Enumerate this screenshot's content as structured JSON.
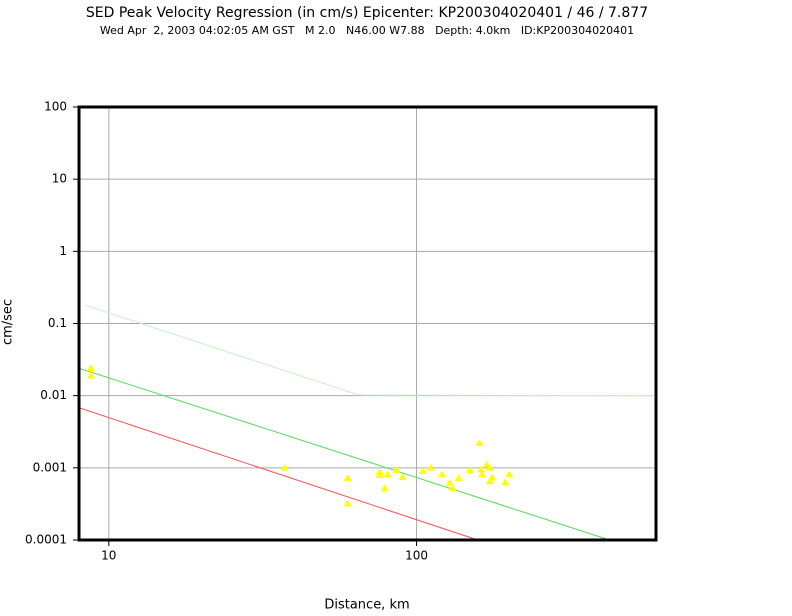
{
  "chart_data": {
    "type": "scatter",
    "title": "SED Peak Velocity Regression (in cm/s) Epicenter: KP200304020401 / 46 / 7.877",
    "subtitle": "Wed Apr  2, 2003 04:02:05 AM GST   M 2.0   N46.00 W7.88   Depth: 4.0km   ID:KP200304020401",
    "x_label": "Distance, km",
    "y_label": "cm/sec",
    "x_log": true,
    "y_log": true,
    "grid": true,
    "xlim": [
      8,
      600
    ],
    "ylim": [
      0.0001,
      100
    ],
    "xticks": [
      10,
      100
    ],
    "yticks": [
      100,
      10,
      1,
      0.1,
      0.01,
      0.001,
      0.0001
    ],
    "series": [
      {
        "type": "line",
        "color": "#ff5050",
        "x": [
          8,
          158
        ],
        "y": [
          0.0068,
          0.0001
        ]
      },
      {
        "type": "line",
        "color": "#5ad85a",
        "x": [
          8,
          424
        ],
        "y": [
          0.024,
          0.0001
        ]
      },
      {
        "type": "line",
        "color": "#c8efc8",
        "x": [
          8.36,
          65,
          600
        ],
        "y": [
          0.18,
          0.0102,
          0.01
        ]
      },
      {
        "type": "scatter",
        "color": "#ffff00",
        "x": [
          8.74,
          8.74,
          37.3,
          59.7,
          59.7,
          75.9,
          75.9,
          78.7,
          80.5,
          86.1,
          90,
          104.6,
          111,
          121,
          128,
          131,
          137,
          149,
          160,
          162,
          163,
          169,
          173,
          173,
          176,
          194,
          200
        ],
        "y": [
          0.024,
          0.019,
          0.001,
          0.00072,
          0.00032,
          0.00087,
          0.00079,
          0.00052,
          0.00081,
          0.00093,
          0.00074,
          0.0009,
          0.001,
          0.00081,
          0.00062,
          0.00052,
          0.00072,
          0.00093,
          0.0022,
          0.00095,
          0.00081,
          0.0011,
          0.001,
          0.00065,
          0.00073,
          0.00063,
          0.00081
        ]
      }
    ]
  }
}
